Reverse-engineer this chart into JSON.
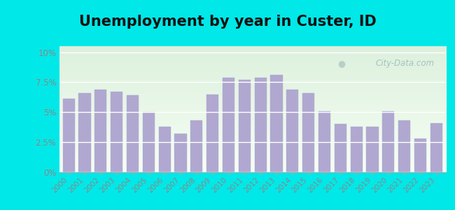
{
  "title": "Unemployment by year in Custer, ID",
  "years": [
    2000,
    2001,
    2002,
    2003,
    2004,
    2005,
    2006,
    2007,
    2008,
    2009,
    2010,
    2011,
    2012,
    2013,
    2014,
    2015,
    2016,
    2017,
    2018,
    2019,
    2020,
    2021,
    2022,
    2023
  ],
  "values": [
    6.1,
    6.6,
    6.9,
    6.7,
    6.4,
    5.0,
    3.8,
    3.2,
    4.3,
    6.5,
    7.9,
    7.7,
    7.9,
    8.1,
    6.9,
    6.6,
    5.1,
    4.0,
    3.8,
    3.8,
    5.1,
    4.3,
    2.8,
    4.1
  ],
  "bar_color": "#b0a8d0",
  "background_outer": "#00e8e8",
  "background_inner_top": "#ddf0dd",
  "background_inner_bottom": "#eef8ee",
  "ytick_labels": [
    "0%",
    "2.5%",
    "5%",
    "7.5%",
    "10%"
  ],
  "ytick_values": [
    0,
    2.5,
    5.0,
    7.5,
    10.0
  ],
  "ylim": [
    0,
    10.5
  ],
  "title_fontsize": 15,
  "watermark_text": "City-Data.com",
  "tick_color": "#888888",
  "ytick_color": "#888888"
}
